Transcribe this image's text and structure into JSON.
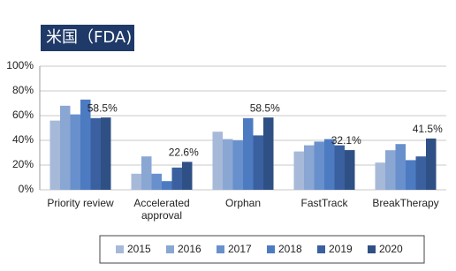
{
  "chart_data": {
    "type": "bar",
    "title": "米国（FDA)",
    "categories": [
      "Priority review",
      "Accelerated approval",
      "Orphan",
      "FastTrack",
      "BreakTherapy"
    ],
    "series": [
      {
        "name": "2015",
        "color": "#a6b9d9",
        "values": [
          56,
          13,
          47,
          31,
          22
        ]
      },
      {
        "name": "2016",
        "color": "#8aa6d3",
        "values": [
          68,
          27,
          41,
          36,
          32
        ]
      },
      {
        "name": "2017",
        "color": "#6890cc",
        "values": [
          61,
          13,
          40,
          39,
          37
        ]
      },
      {
        "name": "2018",
        "color": "#4d7bc2",
        "values": [
          73,
          7,
          58,
          41,
          24
        ]
      },
      {
        "name": "2019",
        "color": "#3b609f",
        "values": [
          58,
          18,
          44,
          36,
          27
        ]
      },
      {
        "name": "2020",
        "color": "#2f5084",
        "values": [
          58.5,
          22.6,
          58.5,
          32.1,
          41.5
        ],
        "value_labels": [
          "58.5%",
          "22.6%",
          "58.5%",
          "32.1%",
          "41.5%"
        ]
      }
    ],
    "ylim": [
      0,
      100
    ],
    "yticks": [
      {
        "value": 0,
        "label": "0%"
      },
      {
        "value": 20,
        "label": "20%"
      },
      {
        "value": 40,
        "label": "40%"
      },
      {
        "value": 60,
        "label": "60%"
      },
      {
        "value": 80,
        "label": "80%"
      },
      {
        "value": 100,
        "label": "100%"
      }
    ],
    "grid": true,
    "legend": "bottom"
  }
}
